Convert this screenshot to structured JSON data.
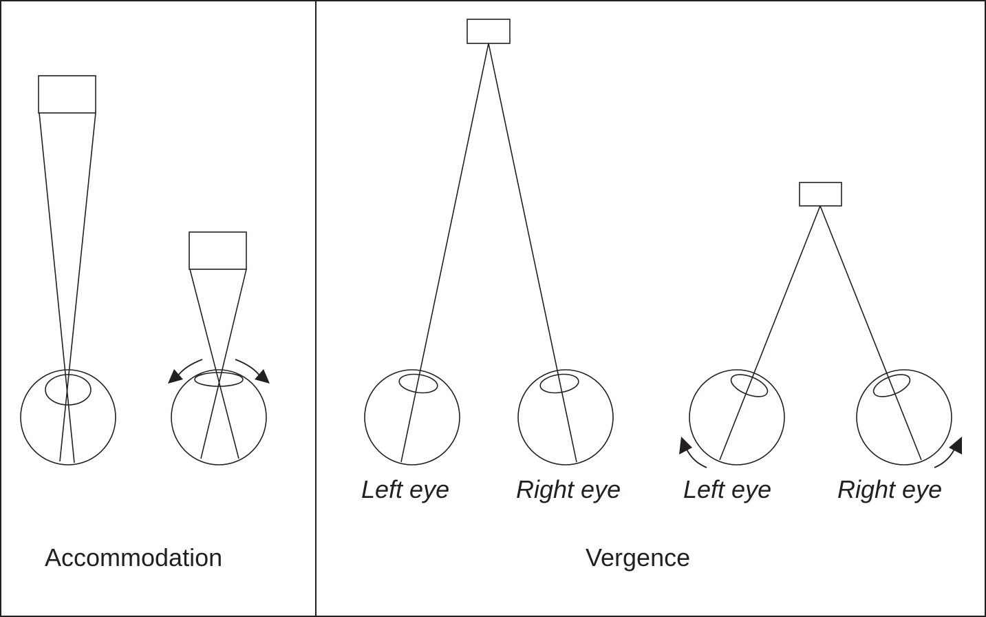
{
  "panels": {
    "accommodation": {
      "caption": "Accommodation"
    },
    "vergence": {
      "caption": "Vergence"
    }
  },
  "eye_labels": {
    "far_left": "Left eye",
    "far_right": "Right eye",
    "near_left": "Left eye",
    "near_right": "Right eye"
  },
  "colors": {
    "line": "#231f20",
    "background": "#ffffff"
  }
}
